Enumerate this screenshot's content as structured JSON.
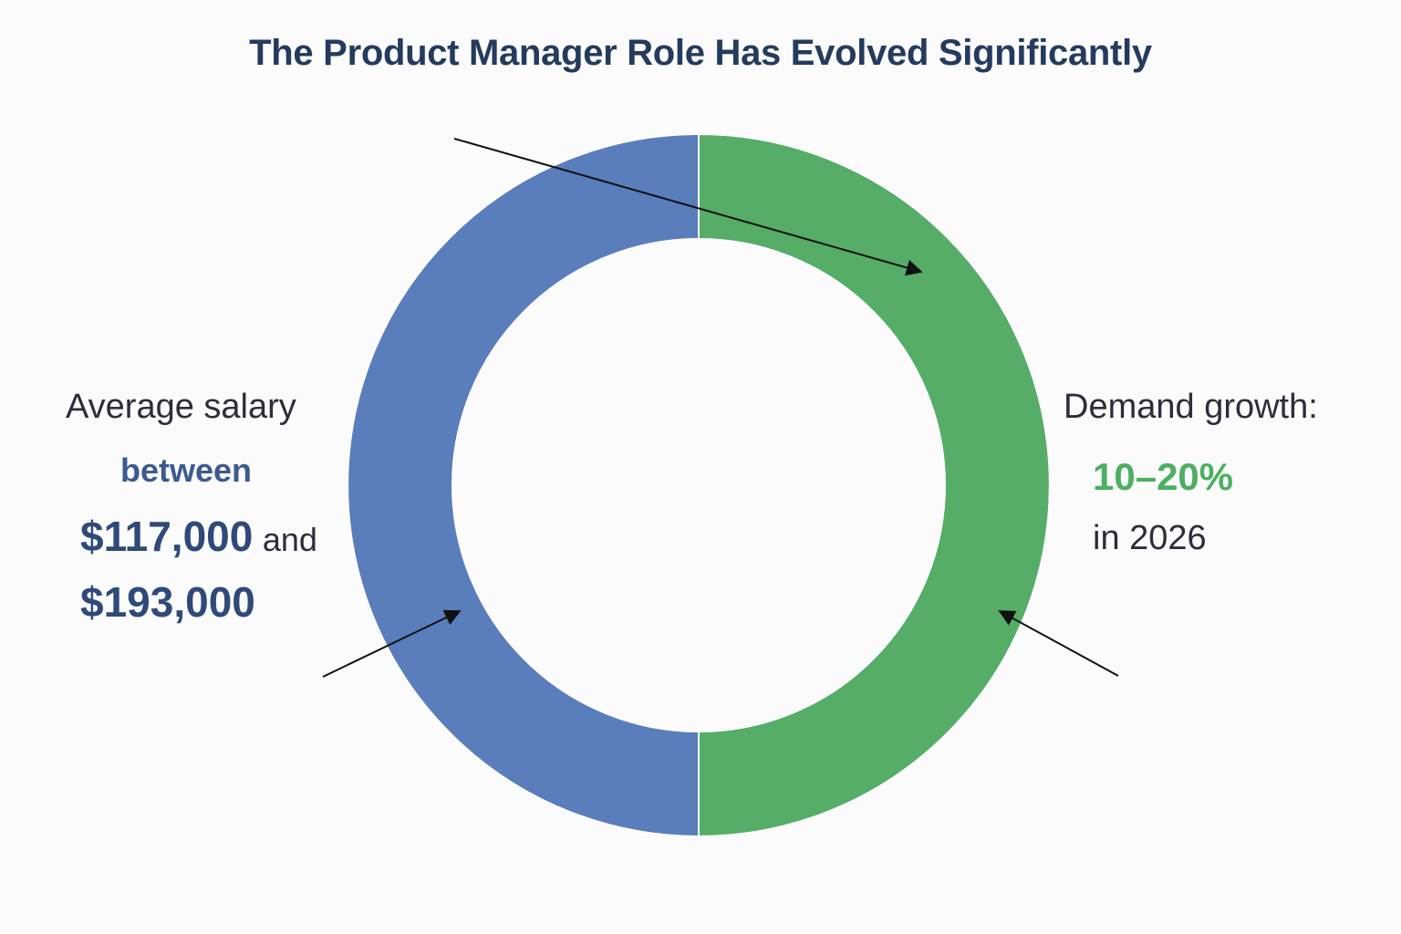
{
  "title": "The Product Manager Role Has Evolved Significantly",
  "chart_data": {
    "type": "pie",
    "variant": "donut",
    "title": "The Product Manager Role Has Evolved Significantly",
    "slices": [
      {
        "name": "Demand growth",
        "value": 50,
        "color": "#55ad68"
      },
      {
        "name": "Average salary",
        "value": 50,
        "color": "#5a7dbb"
      }
    ],
    "legend": "none"
  },
  "annotations": {
    "salary": {
      "label": "Average salary",
      "between": "between",
      "low": "$117,000",
      "and": "and",
      "high": "$193,000"
    },
    "demand": {
      "label": "Demand growth:",
      "range": "10–20%",
      "period": "in 2026"
    }
  },
  "colors": {
    "title": "#243b5e",
    "salary_accent": "#3d5a8f",
    "demand_accent": "#4caf61",
    "arrow": "#111111"
  }
}
